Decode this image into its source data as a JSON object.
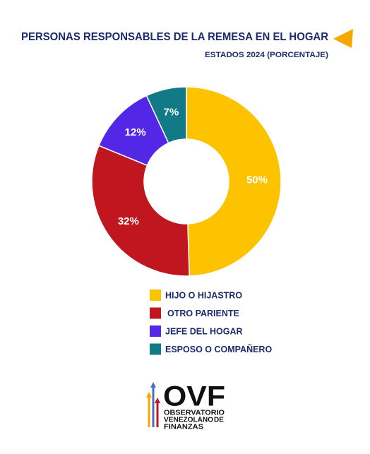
{
  "chart_data": {
    "type": "donut",
    "title": "PERSONAS RESPONSABLES DE LA REMESA EN EL HOGAR",
    "subtitle": "ESTADOS 2024 (PORCENTAJE)",
    "categories": [
      "HIJO O HIJASTRO",
      "OTRO PARIENTE",
      "JEFE DEL HOGAR",
      "ESPOSO O COMPAÑERO"
    ],
    "values": [
      50,
      32,
      12,
      7
    ],
    "value_labels": [
      "50%",
      "32%",
      "12%",
      "7%"
    ],
    "colors": [
      "#fdc300",
      "#c0161f",
      "#5228e6",
      "#117a86"
    ],
    "legend": "bottom"
  },
  "logo": {
    "acronym": "OVF",
    "line1": "OBSERVATORIO",
    "line2a": "VENEZOLANO",
    "line2b": "DE",
    "line3": "FINANZAS"
  }
}
